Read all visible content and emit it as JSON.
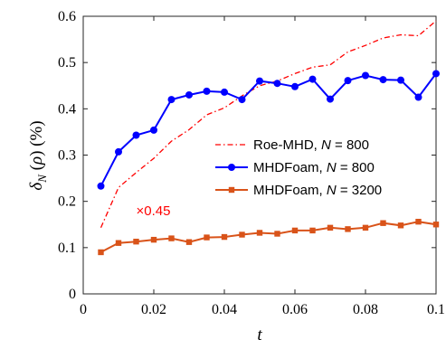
{
  "chart_data": {
    "type": "line",
    "xlabel": "t",
    "ylabel": "δ_N (ρ) (%)",
    "xlim": [
      0,
      0.1
    ],
    "ylim": [
      0,
      0.6
    ],
    "xticks": [
      "0",
      "0.02",
      "0.04",
      "0.06",
      "0.08",
      "0.1"
    ],
    "yticks": [
      "0",
      "0.1",
      "0.2",
      "0.3",
      "0.4",
      "0.5",
      "0.6"
    ],
    "grid": false,
    "legend_position": "center-right",
    "annotation": {
      "text": "×0.45",
      "x": 0.015,
      "y": 0.18
    },
    "series": [
      {
        "name": "Roe-MHD,  N = 800",
        "legend_prefix": "Roe-MHD,  ",
        "legend_var": "N",
        "legend_suffix": " = 800",
        "color": "#ff0000",
        "style": "dashdot",
        "marker": "none",
        "x": [
          0.005,
          0.01,
          0.015,
          0.02,
          0.025,
          0.03,
          0.035,
          0.04,
          0.045,
          0.05,
          0.055,
          0.06,
          0.065,
          0.07,
          0.075,
          0.08,
          0.085,
          0.09,
          0.095,
          0.1
        ],
        "y": [
          0.143,
          0.23,
          0.262,
          0.293,
          0.33,
          0.355,
          0.387,
          0.402,
          0.428,
          0.45,
          0.46,
          0.476,
          0.49,
          0.495,
          0.523,
          0.537,
          0.553,
          0.56,
          0.558,
          0.59
        ]
      },
      {
        "name": "MHDFoam, N = 800",
        "legend_prefix": "MHDFoam, ",
        "legend_var": "N",
        "legend_suffix": " = 800",
        "color": "#0000ff",
        "style": "solid",
        "marker": "circle",
        "x": [
          0.005,
          0.01,
          0.015,
          0.02,
          0.025,
          0.03,
          0.035,
          0.04,
          0.045,
          0.05,
          0.055,
          0.06,
          0.065,
          0.07,
          0.075,
          0.08,
          0.085,
          0.09,
          0.095,
          0.1
        ],
        "y": [
          0.233,
          0.307,
          0.343,
          0.354,
          0.42,
          0.43,
          0.438,
          0.436,
          0.42,
          0.46,
          0.455,
          0.448,
          0.464,
          0.421,
          0.461,
          0.472,
          0.463,
          0.462,
          0.425,
          0.476
        ]
      },
      {
        "name": "MHDFoam, N = 3200",
        "legend_prefix": "MHDFoam, ",
        "legend_var": "N",
        "legend_suffix": " = 3200",
        "color": "#d95319",
        "style": "solid",
        "marker": "square",
        "x": [
          0.005,
          0.01,
          0.015,
          0.02,
          0.025,
          0.03,
          0.035,
          0.04,
          0.045,
          0.05,
          0.055,
          0.06,
          0.065,
          0.07,
          0.075,
          0.08,
          0.085,
          0.09,
          0.095,
          0.1
        ],
        "y": [
          0.09,
          0.11,
          0.113,
          0.117,
          0.12,
          0.112,
          0.122,
          0.123,
          0.128,
          0.132,
          0.13,
          0.137,
          0.137,
          0.143,
          0.14,
          0.143,
          0.153,
          0.148,
          0.156,
          0.15
        ]
      }
    ]
  }
}
